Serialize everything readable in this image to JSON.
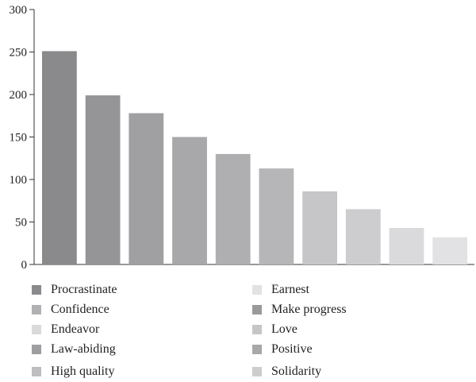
{
  "chart_data": {
    "type": "bar",
    "title": "",
    "xlabel": "",
    "ylabel": "",
    "ylim": [
      0,
      300
    ],
    "yticks": [
      "0",
      "50",
      "100",
      "150",
      "200",
      "250",
      "300"
    ],
    "grid": false,
    "legend_placement": "bottom",
    "categories": [
      "Procrastinate",
      "Confidence",
      "Law-abiding",
      "Make progress",
      "Positive",
      "High quality",
      "Love",
      "Solidarity",
      "Endeavor",
      "Earnest"
    ],
    "values": [
      251,
      199,
      178,
      150,
      130,
      113,
      86,
      65,
      43,
      32
    ],
    "colors": [
      "#8a8a8c",
      "#959597",
      "#a0a0a2",
      "#a8a8aa",
      "#afafb1",
      "#b6b6b8",
      "#c6c6c8",
      "#cdcdcf",
      "#dadadc",
      "#e2e2e4"
    ]
  },
  "legend": {
    "items": [
      {
        "label": "Procrastinate",
        "color": "#8a8a8c"
      },
      {
        "label": "Confidence",
        "color": "#b1b1b3"
      },
      {
        "label": "Endeavor",
        "color": "#dadadc"
      },
      {
        "label": "Law-abiding",
        "color": "#9e9ea0"
      },
      {
        "label": "High quality",
        "color": "#bebec0"
      },
      {
        "label": "Earnest",
        "color": "#e2e2e4"
      },
      {
        "label": "Make progress",
        "color": "#9a9a9c"
      },
      {
        "label": "Love",
        "color": "#c6c6c8"
      },
      {
        "label": "Positive",
        "color": "#a8a8aa"
      },
      {
        "label": "Solidarity",
        "color": "#cdcdcf"
      }
    ]
  }
}
